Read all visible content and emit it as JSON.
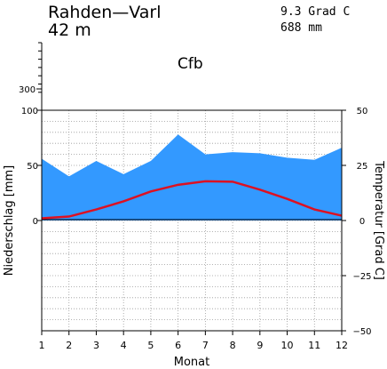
{
  "header": {
    "station": "Rahden—Varl",
    "elevation": "42 m",
    "mean_temp": "9.3 Grad C",
    "annual_precip": "688 mm",
    "climate_class": "Cfb"
  },
  "chart_data": {
    "type": "area",
    "categories": [
      1,
      2,
      3,
      4,
      5,
      6,
      7,
      8,
      9,
      10,
      11,
      12
    ],
    "xlabel": "Monat",
    "ylabel": "Niederschlag [mm]",
    "y2label": "Temperatur [Grad C]",
    "precip_ylim": [
      -100,
      100
    ],
    "temp_ylim": [
      -50,
      50
    ],
    "upper_precip_tick": 300,
    "precip_ticks": [
      0,
      50,
      100
    ],
    "temp_ticks": [
      -50,
      -25,
      0,
      25,
      50
    ],
    "grid": true,
    "colors": {
      "precip_fill": "#3399ff",
      "temp_line": "#dd1122"
    },
    "series": [
      {
        "key": "precip",
        "values": [
          56,
          40,
          54,
          42,
          54,
          78,
          60,
          62,
          61,
          57,
          55,
          66
        ]
      },
      {
        "key": "temp",
        "values": [
          1.0,
          1.8,
          5.0,
          8.7,
          13.2,
          16.2,
          17.8,
          17.6,
          14.0,
          9.8,
          5.0,
          2.2
        ]
      }
    ]
  }
}
